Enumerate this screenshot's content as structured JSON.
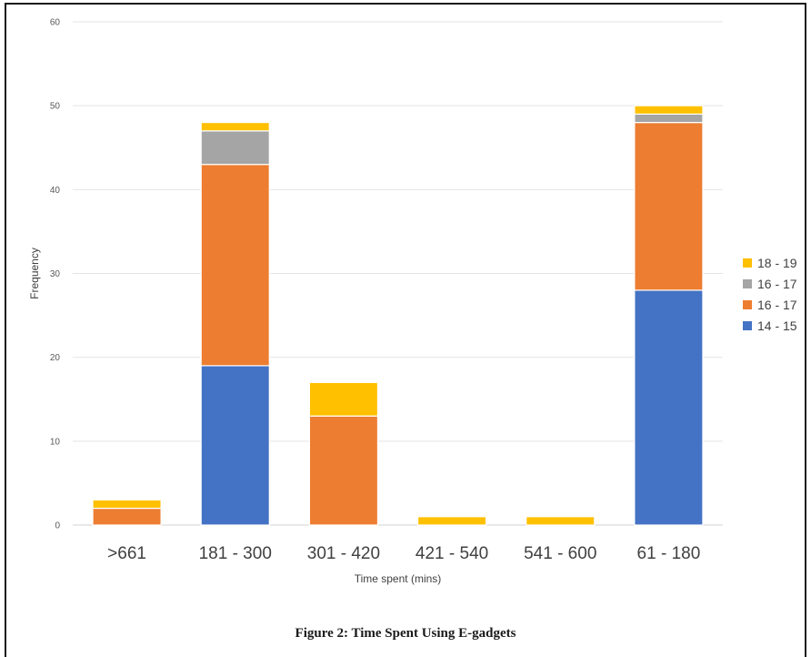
{
  "caption": "Figure 2: Time Spent Using E-gadgets",
  "chart_data": {
    "type": "bar",
    "stacked": true,
    "categories": [
      ">661",
      "181 - 300",
      "301 - 420",
      "421 - 540",
      "541 - 600",
      "61 - 180"
    ],
    "series": [
      {
        "name": "14 - 15",
        "color": "#4472C4",
        "values": [
          0,
          19,
          0,
          0,
          0,
          28
        ]
      },
      {
        "name": "16 - 17",
        "color": "#ED7D31",
        "values": [
          2,
          24,
          13,
          0,
          0,
          20
        ]
      },
      {
        "name": "16 - 17",
        "color": "#A5A5A5",
        "values": [
          0,
          4,
          0,
          0,
          0,
          1
        ]
      },
      {
        "name": "18 - 19",
        "color": "#FFC000",
        "values": [
          1,
          1,
          4,
          1,
          1,
          1
        ]
      }
    ],
    "title": "",
    "xlabel": "Time spent (mins)",
    "ylabel": "Frequency",
    "ylim": [
      0,
      60
    ],
    "yticks": [
      0,
      10,
      20,
      30,
      40,
      50,
      60
    ],
    "grid": true,
    "legend_position": "right",
    "legend_order": [
      3,
      2,
      1,
      0
    ]
  }
}
